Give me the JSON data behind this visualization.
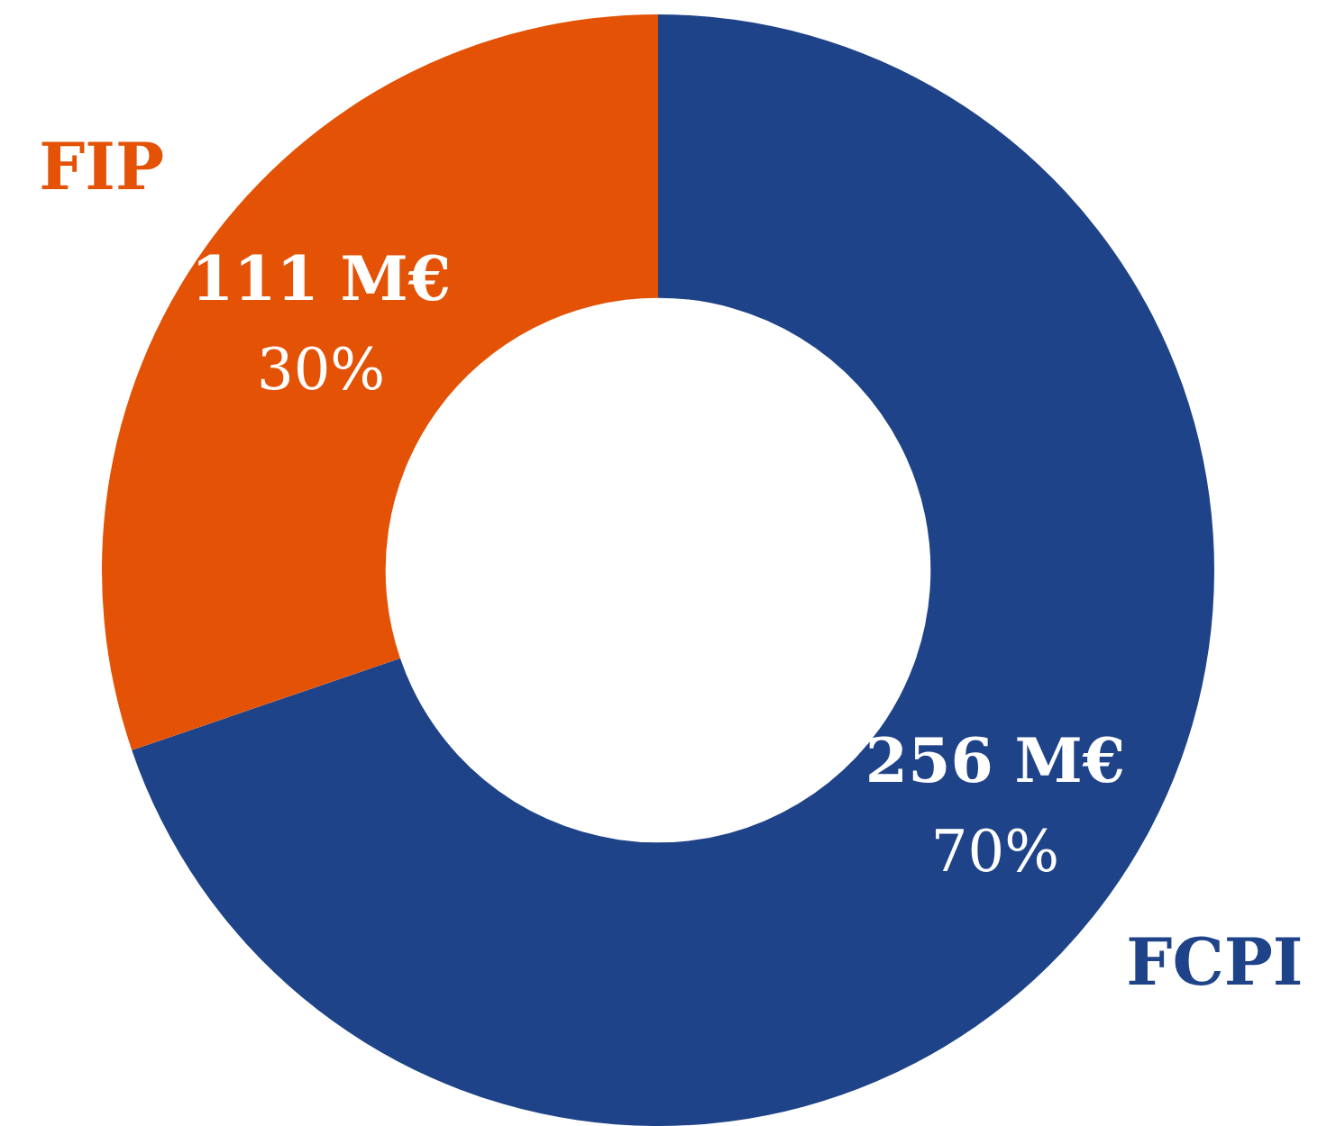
{
  "chart_data": {
    "type": "donut",
    "categories": [
      "FCPI",
      "FIP"
    ],
    "values": [
      256,
      111
    ],
    "colors": [
      "#1f4388",
      "#e35205"
    ],
    "value_labels": [
      "256 M€\n70%",
      "111 M€\n30%"
    ],
    "legend": false
  }
}
